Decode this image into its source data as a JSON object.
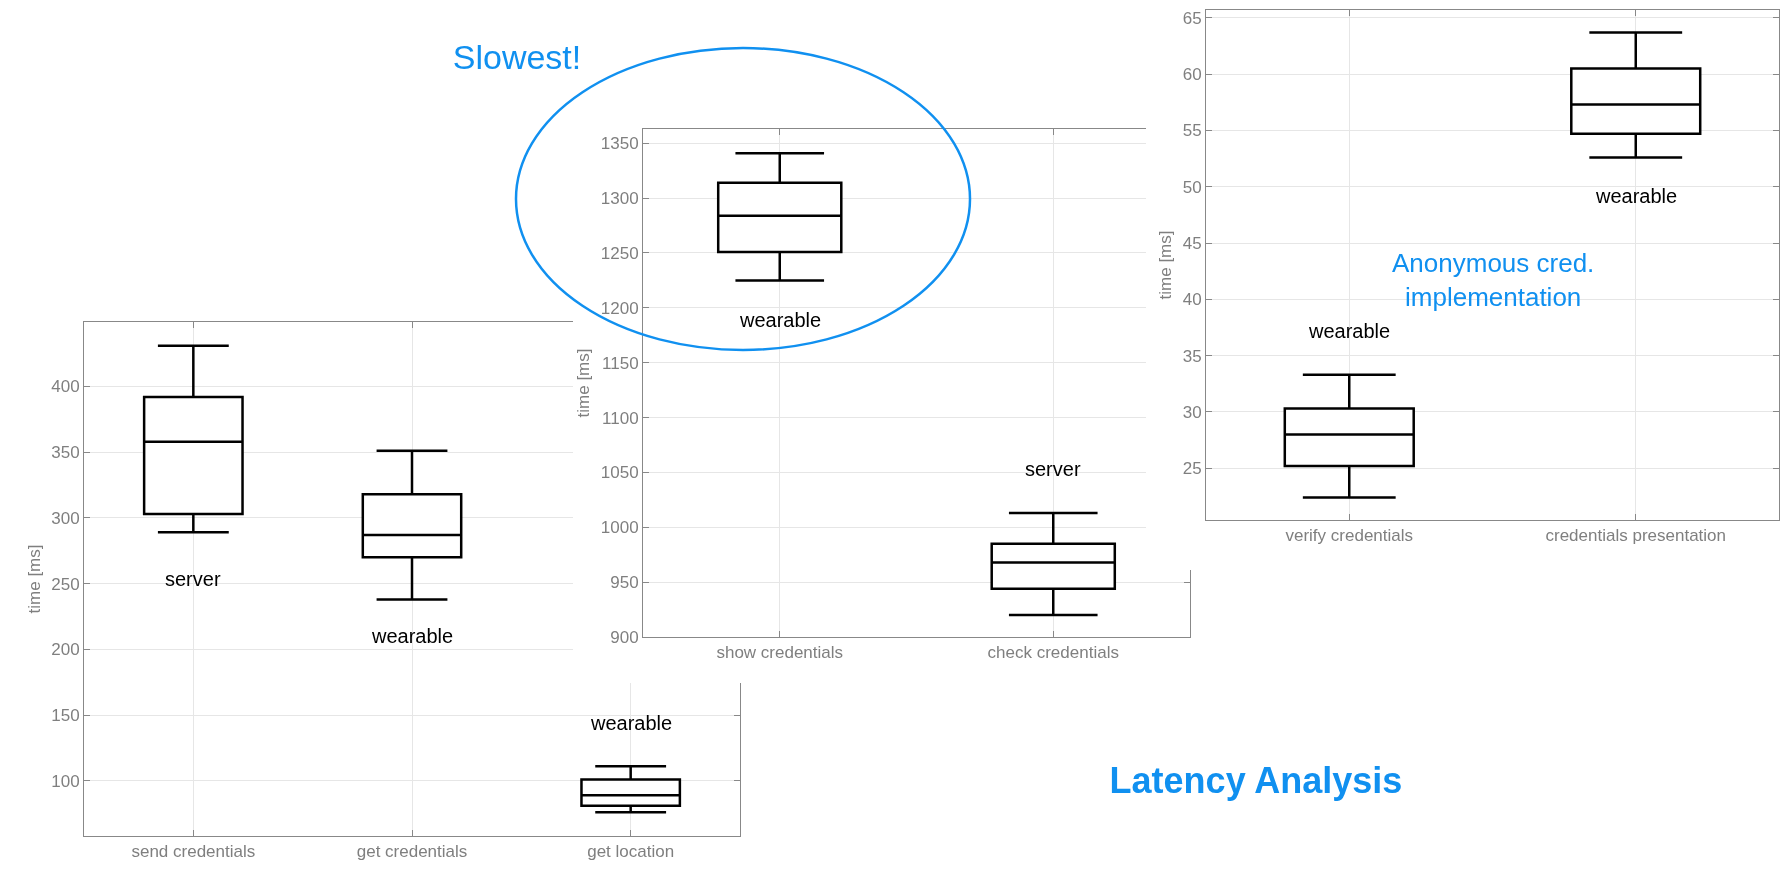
{
  "chart_data": [
    {
      "type": "box",
      "ylabel": "time [ms]",
      "categories": [
        "send credentials",
        "get credentials",
        "get location"
      ],
      "boxes": [
        {
          "low": 289,
          "q1": 303,
          "median": 358,
          "q3": 392,
          "high": 431
        },
        {
          "low": 238,
          "q1": 270,
          "median": 287,
          "q3": 318,
          "high": 351
        },
        {
          "low": 76,
          "q1": 81,
          "median": 89,
          "q3": 101,
          "high": 111
        }
      ],
      "ylim": [
        58,
        449
      ],
      "yticks": [
        100,
        150,
        200,
        250,
        300,
        350,
        400
      ],
      "grid": true,
      "annotations": [
        "server",
        "wearable",
        "wearable"
      ]
    },
    {
      "type": "box",
      "ylabel": "time [ms]",
      "categories": [
        "show credentials",
        "check credentials"
      ],
      "boxes": [
        {
          "low": 1225,
          "q1": 1251,
          "median": 1284,
          "q3": 1314,
          "high": 1341
        },
        {
          "low": 920,
          "q1": 944,
          "median": 968,
          "q3": 985,
          "high": 1013
        }
      ],
      "ylim": [
        900,
        1363
      ],
      "yticks": [
        900,
        950,
        1000,
        1050,
        1100,
        1150,
        1200,
        1250,
        1300,
        1350
      ],
      "grid": true,
      "annotations": [
        "wearable",
        "server",
        "Slowest!"
      ]
    },
    {
      "type": "box",
      "ylabel": "time [ms]",
      "categories": [
        "verify credentials",
        "credentials presentation"
      ],
      "boxes": [
        {
          "low": 22.4,
          "q1": 25.2,
          "median": 28,
          "q3": 30.3,
          "high": 33.3
        },
        {
          "low": 52.6,
          "q1": 54.7,
          "median": 57.3,
          "q3": 60.5,
          "high": 63.7
        }
      ],
      "ylim": [
        20.4,
        65.7
      ],
      "yticks": [
        25,
        30,
        35,
        40,
        45,
        50,
        55,
        60,
        65
      ],
      "grid": true,
      "annotations": [
        "wearable",
        "wearable",
        "Anonymous cred.\nimplementation",
        "Latency Analysis"
      ]
    }
  ]
}
